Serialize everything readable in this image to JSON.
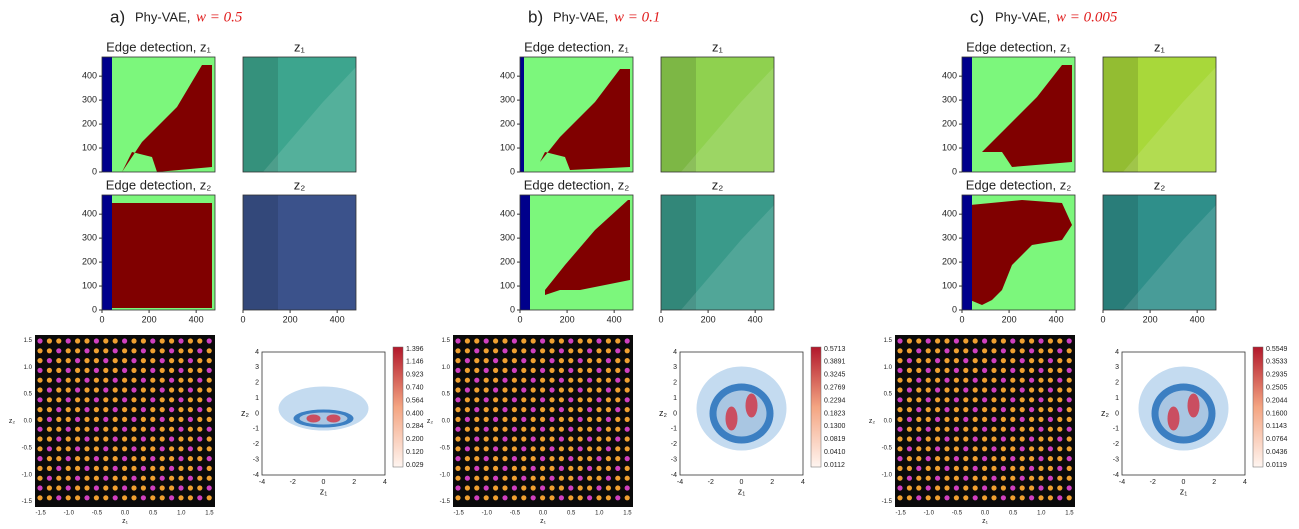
{
  "panels": [
    {
      "label": "a)",
      "model": "Phy-VAE,",
      "weight": "w = 0.5",
      "maps": [
        {
          "title": "Edge detection, z₁"
        },
        {
          "title": "z₁"
        },
        {
          "title": "Edge detection, z₂"
        },
        {
          "title": "z₂"
        }
      ],
      "colorbar": [
        "1.396",
        "1.146",
        "0.923",
        "0.740",
        "0.564",
        "0.400",
        "0.284",
        "0.200",
        "0.120",
        "0.029"
      ]
    },
    {
      "label": "b)",
      "model": "Phy-VAE,",
      "weight": "w = 0.1",
      "maps": [
        {
          "title": "Edge detection, z₁"
        },
        {
          "title": "z₁"
        },
        {
          "title": "Edge detection, z₂"
        },
        {
          "title": "z₂"
        }
      ],
      "colorbar": [
        "0.5713",
        "0.3891",
        "0.3245",
        "0.2769",
        "0.2294",
        "0.1823",
        "0.1300",
        "0.0819",
        "0.0410",
        "0.0112"
      ]
    },
    {
      "label": "c)",
      "model": "Phy-VAE,",
      "weight": "w = 0.005",
      "maps": [
        {
          "title": "Edge detection, z₁"
        },
        {
          "title": "z₁"
        },
        {
          "title": "Edge detection, z₂"
        },
        {
          "title": "z₂"
        }
      ],
      "colorbar": [
        "0.5549",
        "0.3533",
        "0.2935",
        "0.2505",
        "0.2044",
        "0.1600",
        "0.1143",
        "0.0764",
        "0.0436",
        "0.0119"
      ]
    }
  ],
  "map_yticks": [
    "0",
    "100",
    "200",
    "300",
    "400"
  ],
  "map_xticks": [
    "0",
    "200",
    "400"
  ],
  "manifold_ticks": [
    "-1.5",
    "-1.0",
    "-0.5",
    "0.0",
    "0.5",
    "1.0",
    "1.5"
  ],
  "density_ticks": [
    "-4",
    "-3",
    "-2",
    "-1",
    "0",
    "1",
    "2",
    "3",
    "4"
  ],
  "density_xticks": [
    "-4",
    "-2",
    "0",
    "2",
    "4"
  ],
  "axis_x": "z₁",
  "axis_y": "z₂"
}
